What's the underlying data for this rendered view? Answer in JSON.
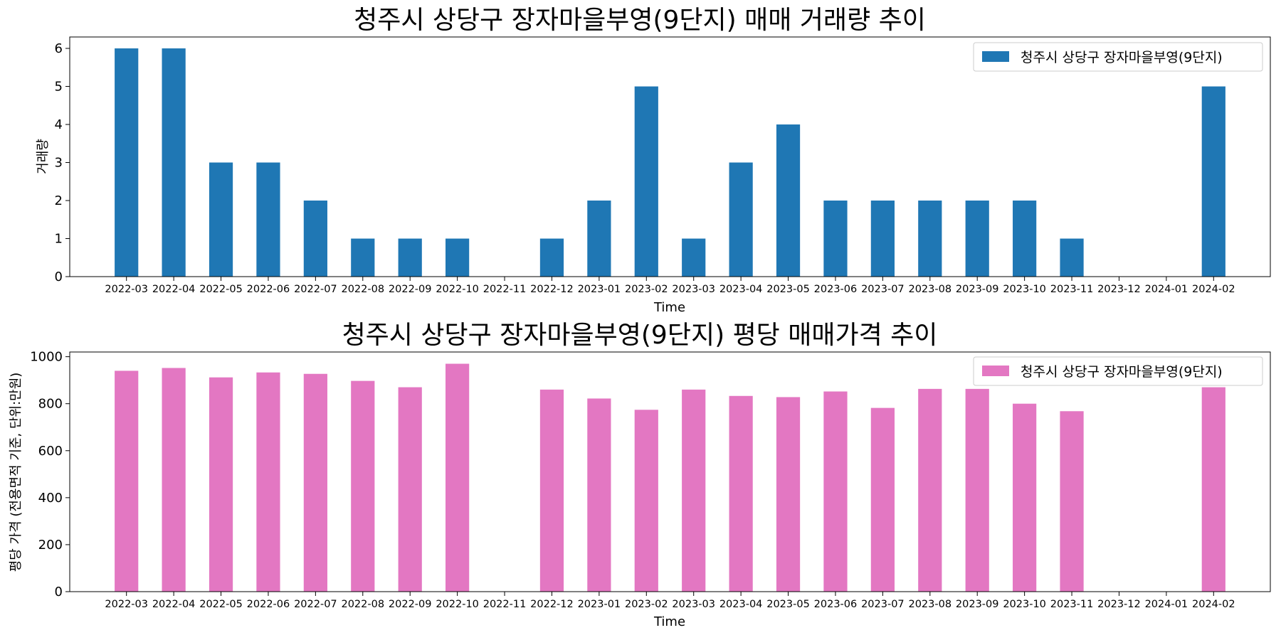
{
  "chart_data": [
    {
      "type": "bar",
      "title": "청주시 상당구 장자마을부영(9단지) 매매 거래량 추이",
      "xlabel": "Time",
      "ylabel": "거래량",
      "ylim": [
        0,
        6.3
      ],
      "yticks": [
        "0",
        "1",
        "2",
        "3",
        "4",
        "5",
        "6"
      ],
      "categories": [
        "2022-03",
        "2022-04",
        "2022-05",
        "2022-06",
        "2022-07",
        "2022-08",
        "2022-09",
        "2022-10",
        "2022-11",
        "2022-12",
        "2023-01",
        "2023-02",
        "2023-03",
        "2023-04",
        "2023-05",
        "2023-06",
        "2023-07",
        "2023-08",
        "2023-09",
        "2023-10",
        "2023-11",
        "2023-12",
        "2024-01",
        "2024-02"
      ],
      "series": [
        {
          "name": "청주시 상당구 장자마을부영(9단지)",
          "color": "#1f77b4",
          "values": [
            6,
            6,
            3,
            3,
            2,
            1,
            1,
            1,
            0,
            1,
            2,
            5,
            1,
            3,
            4,
            2,
            2,
            2,
            2,
            2,
            1,
            0,
            0,
            5
          ]
        }
      ],
      "legend": "top-right",
      "grid": false
    },
    {
      "type": "bar",
      "title": "청주시 상당구 장자마을부영(9단지) 평당 매매가격 추이",
      "xlabel": "Time",
      "ylabel": "평당 가격 (전용면적 기준, 단위:만원)",
      "ylim": [
        0,
        1020
      ],
      "yticks": [
        "0",
        "200",
        "400",
        "600",
        "800",
        "1000"
      ],
      "categories": [
        "2022-03",
        "2022-04",
        "2022-05",
        "2022-06",
        "2022-07",
        "2022-08",
        "2022-09",
        "2022-10",
        "2022-11",
        "2022-12",
        "2023-01",
        "2023-02",
        "2023-03",
        "2023-04",
        "2023-05",
        "2023-06",
        "2023-07",
        "2023-08",
        "2023-09",
        "2023-10",
        "2023-11",
        "2023-12",
        "2024-01",
        "2024-02"
      ],
      "series": [
        {
          "name": "청주시 상당구 장자마을부영(9단지)",
          "color": "#e377c2",
          "values": [
            940,
            952,
            912,
            933,
            927,
            897,
            870,
            970,
            null,
            860,
            822,
            774,
            860,
            833,
            828,
            852,
            782,
            863,
            863,
            800,
            768,
            null,
            null,
            870
          ]
        }
      ],
      "legend": "top-right",
      "grid": false
    }
  ]
}
